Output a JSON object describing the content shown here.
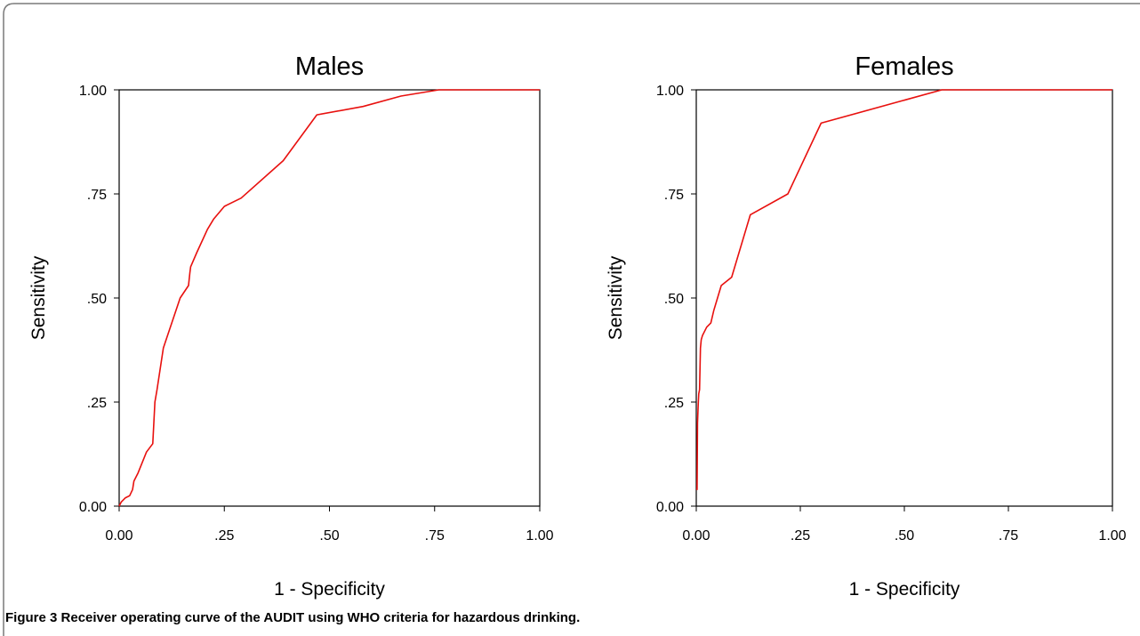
{
  "caption": {
    "label": "Figure 3",
    "text": "Receiver operating curve of the AUDIT using WHO criteria for hazardous drinking."
  },
  "colors": {
    "curve": "#e8100e",
    "axis": "#000000",
    "frame": "#7a7a7a"
  },
  "chart_data": [
    {
      "type": "line",
      "title": "Males",
      "xlabel": "1 - Specificity",
      "ylabel": "Sensitivity",
      "xlim": [
        0,
        1
      ],
      "ylim": [
        0,
        1
      ],
      "x_tick_labels": [
        "0.00",
        ".25",
        ".50",
        ".75",
        "1.00"
      ],
      "y_tick_labels": [
        "0.00",
        ".25",
        ".50",
        ".75",
        "1.00"
      ],
      "grid": false,
      "series": [
        {
          "x": [
            0,
            0.005,
            0.015,
            0.025,
            0.032,
            0.035,
            0.045,
            0.065,
            0.08,
            0.085,
            0.09,
            0.105,
            0.145,
            0.165,
            0.168,
            0.17,
            0.185,
            0.21,
            0.225,
            0.25,
            0.29,
            0.39,
            0.47,
            0.58,
            0.67,
            0.76,
            0.81,
            1.0
          ],
          "y": [
            0,
            0.01,
            0.02,
            0.025,
            0.04,
            0.06,
            0.08,
            0.13,
            0.15,
            0.25,
            0.28,
            0.38,
            0.5,
            0.53,
            0.56,
            0.575,
            0.61,
            0.665,
            0.69,
            0.72,
            0.74,
            0.83,
            0.94,
            0.96,
            0.985,
            1.0,
            1.0,
            1.0
          ]
        }
      ]
    },
    {
      "type": "line",
      "title": "Females",
      "xlabel": "1 - Specificity",
      "ylabel": "Sensitivity",
      "xlim": [
        0,
        1
      ],
      "ylim": [
        0,
        1
      ],
      "x_tick_labels": [
        "0.00",
        ".25",
        ".50",
        ".75",
        "1.00"
      ],
      "y_tick_labels": [
        "0.00",
        ".25",
        ".50",
        ".75",
        "1.00"
      ],
      "grid": false,
      "series": [
        {
          "x": [
            0.0,
            0.002,
            0.003,
            0.005,
            0.006,
            0.008,
            0.01,
            0.012,
            0.015,
            0.025,
            0.035,
            0.042,
            0.06,
            0.085,
            0.13,
            0.22,
            0.3,
            0.59,
            1.0
          ],
          "y": [
            0.04,
            0.04,
            0.2,
            0.25,
            0.27,
            0.28,
            0.38,
            0.4,
            0.41,
            0.43,
            0.44,
            0.47,
            0.53,
            0.55,
            0.7,
            0.75,
            0.92,
            1.0,
            1.0
          ]
        }
      ]
    }
  ]
}
